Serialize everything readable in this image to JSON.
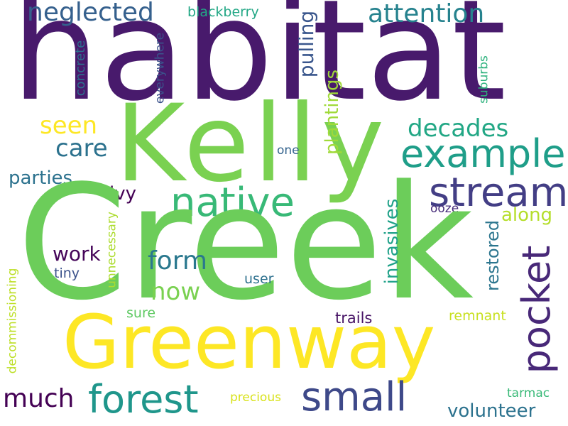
{
  "word_cloud": {
    "words": {
      "creek": "Creek",
      "habitat": "habitat",
      "kelly": "Kelly",
      "greenway": "Greenway",
      "stream": "stream",
      "native": "native",
      "example": "example",
      "pocket": "pocket",
      "forest": "forest",
      "small": "small",
      "attention": "attention",
      "neglected": "neglected",
      "decades": "decades",
      "seen": "seen",
      "care": "care",
      "form": "form",
      "now": "now",
      "much": "much",
      "volunteer": "volunteer",
      "parties": "parties",
      "along": "along",
      "work": "work",
      "ivy": "ivy",
      "plantings": "plantings",
      "pulling": "pulling",
      "invasives": "invasives",
      "restored": "restored",
      "blackberry": "blackberry",
      "concrete": "concrete",
      "everywhere": "everywhere",
      "suburbs": "suburbs",
      "one": "one",
      "ooze": "ooze",
      "user": "user",
      "tiny": "tiny",
      "unnecessary": "unnecessary",
      "sure": "sure",
      "trails": "trails",
      "remnant": "remnant",
      "decommissioning": "decommissioning",
      "tarmac": "tarmac",
      "precious": "precious"
    },
    "palette": [
      "#440154",
      "#481a6c",
      "#472c7a",
      "#433e85",
      "#3b528b",
      "#35608d",
      "#2c728e",
      "#26828e",
      "#1f968b",
      "#22a785",
      "#38b977",
      "#5ec962",
      "#6ccd5a",
      "#7ad151",
      "#a0da39",
      "#c8e020",
      "#fde725"
    ]
  }
}
